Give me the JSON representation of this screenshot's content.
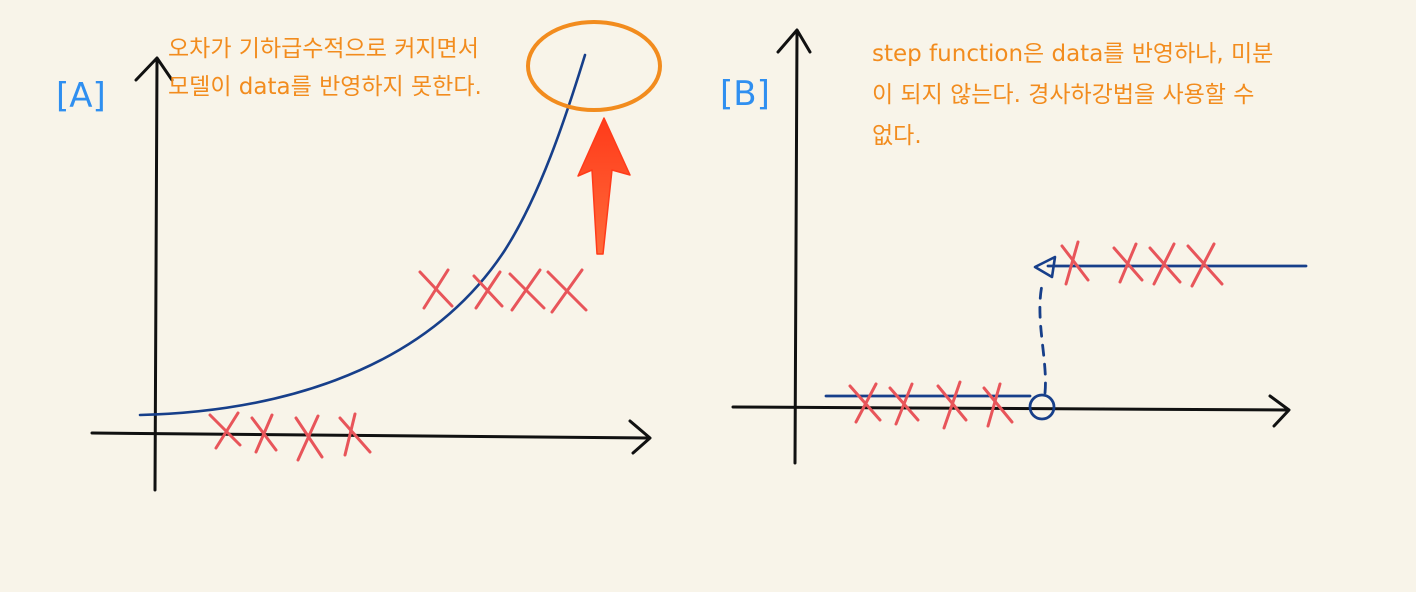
{
  "panel_a": {
    "label": "[A]",
    "note_lines": [
      "오차가 기하급수적으로 커지면서",
      "모델이 data를 반영하지 못한다."
    ]
  },
  "panel_b": {
    "label": "[B]",
    "note_lines": [
      "step function은 data를 반영하나, 미분",
      "이 되지 않는다.  경사하강법을 사용할 수",
      "없다."
    ]
  },
  "colors": {
    "background": "#f8f4e9",
    "axis": "#111111",
    "curve": "#173f8a",
    "data_mark": "#e8555a",
    "annotation": "#f28c1e",
    "arrow": "#ff3b1a",
    "label": "#2f8ff0"
  }
}
